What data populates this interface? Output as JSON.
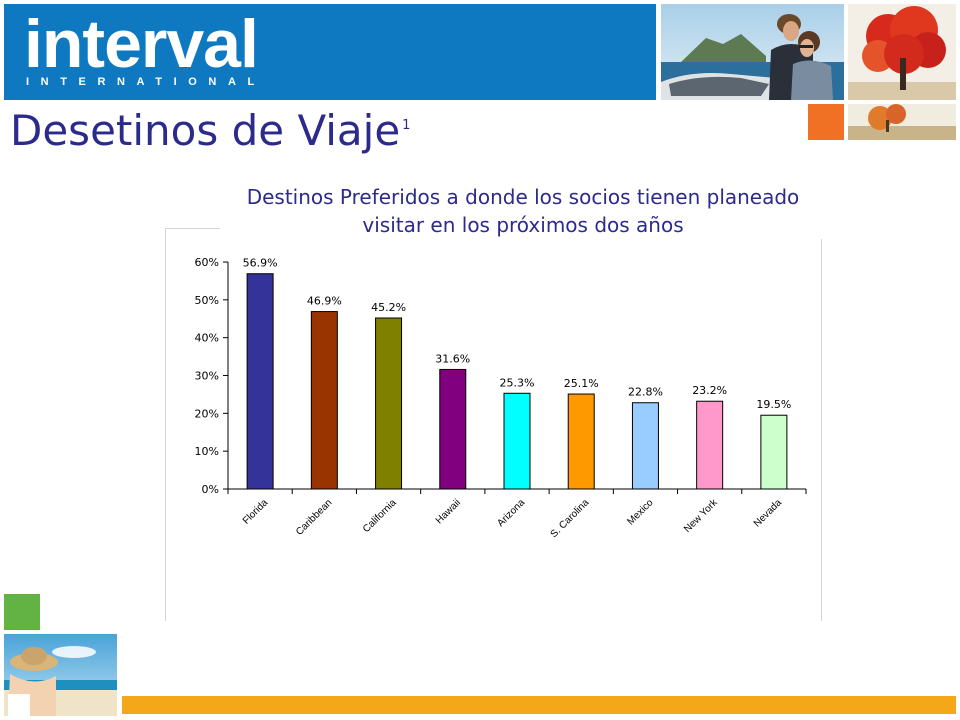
{
  "brand": {
    "name": "interval",
    "tagline": "INTERNATIONAL"
  },
  "slide": {
    "title": "Desetinos de Viaje",
    "title_footnote": "1"
  },
  "colors": {
    "header_blue": "#0e79c1",
    "title_navy": "#2c2a8a",
    "accent_orange": "#f07124",
    "accent_green": "#63b344",
    "footer_bar": "#f4a718"
  },
  "chart_data": {
    "type": "bar",
    "title_lines": [
      "Destinos Preferidos a donde los socios tienen planeado",
      "visitar en los próximos dos años"
    ],
    "categories": [
      "Florida",
      "Caribbean",
      "California",
      "Hawaii",
      "Arizona",
      "S. Carolina",
      "Mexico",
      "New York",
      "Nevada"
    ],
    "values": [
      56.9,
      46.9,
      45.2,
      31.6,
      25.3,
      25.1,
      22.8,
      23.2,
      19.5
    ],
    "value_labels": [
      "56.9%",
      "46.9%",
      "45.2%",
      "31.6%",
      "25.3%",
      "25.1%",
      "22.8%",
      "23.2%",
      "19.5%"
    ],
    "bar_colors": [
      "#333399",
      "#993300",
      "#808000",
      "#800080",
      "#00ffff",
      "#ff9900",
      "#99ccff",
      "#ff99cc",
      "#ccffcc"
    ],
    "y_ticks": [
      0,
      10,
      20,
      30,
      40,
      50,
      60
    ],
    "y_tick_labels": [
      "0%",
      "10%",
      "20%",
      "30%",
      "40%",
      "50%",
      "60%"
    ],
    "ylim": [
      0,
      60
    ],
    "xlabel": "",
    "ylabel": "",
    "grid": false,
    "legend": "none"
  }
}
